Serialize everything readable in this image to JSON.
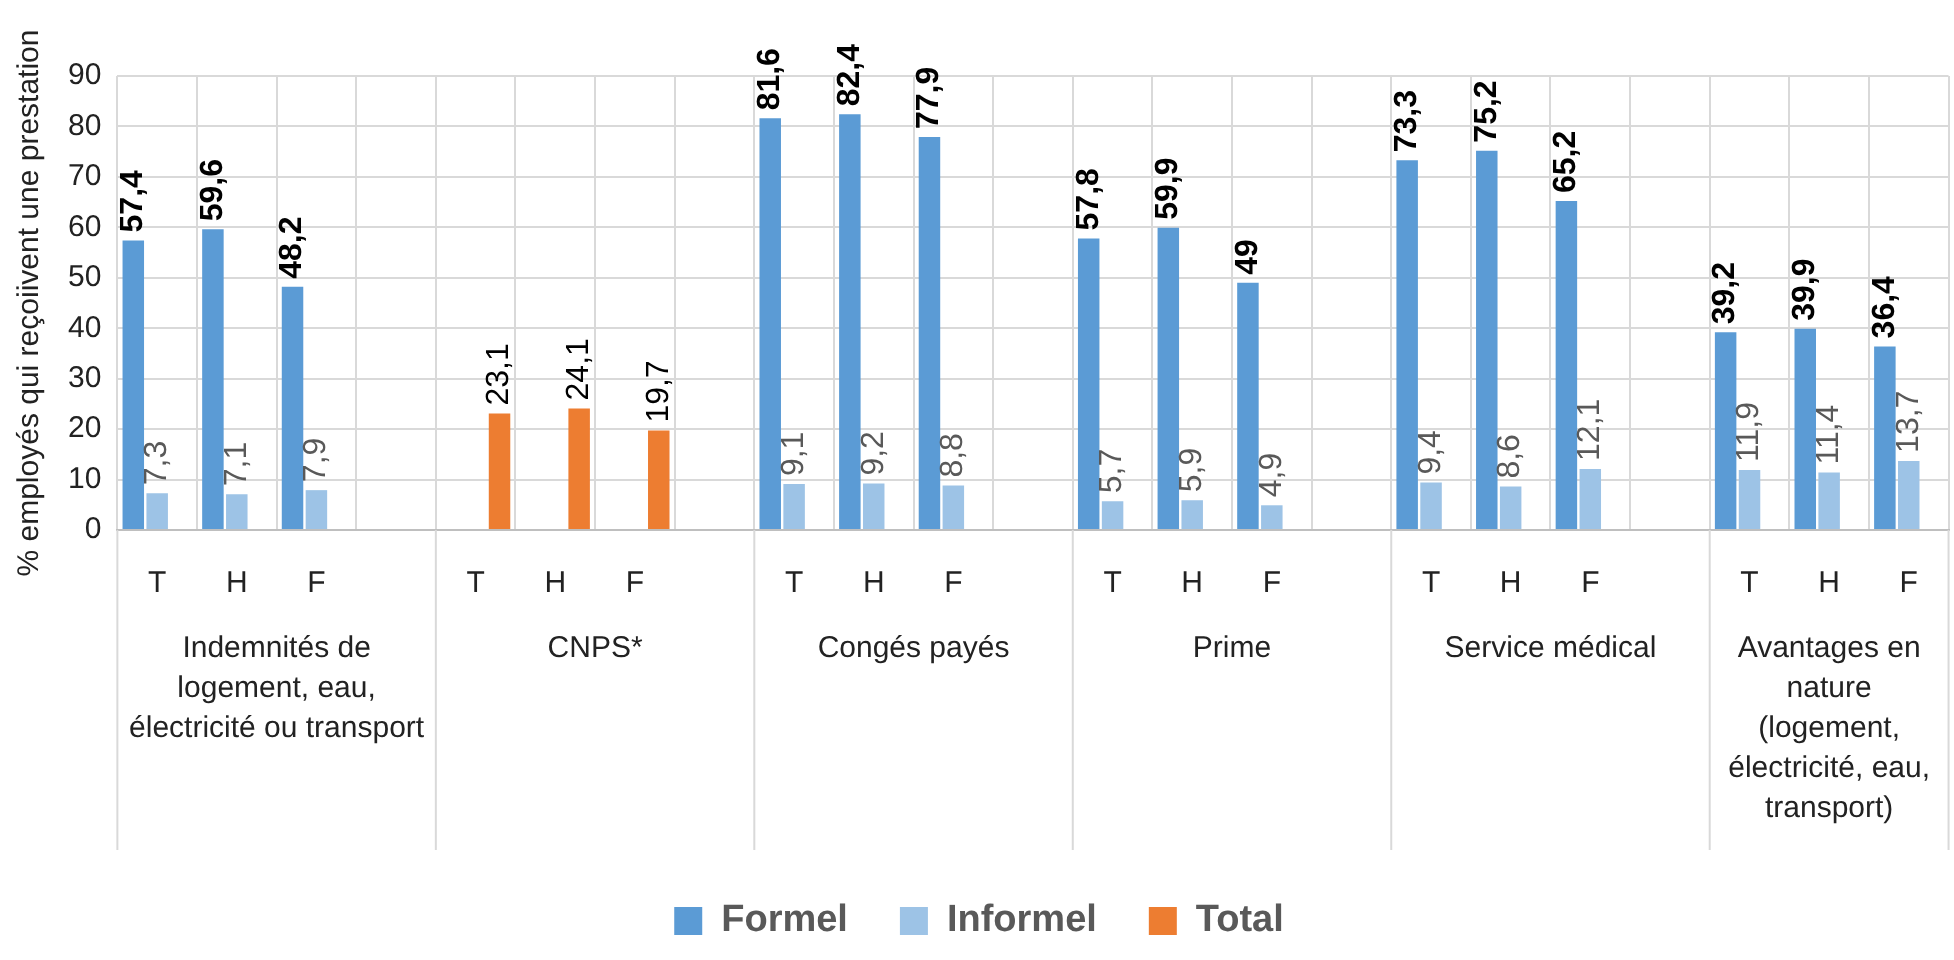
{
  "chart_data": {
    "type": "bar",
    "ylabel": "% employés qui reçoiivent une prestation",
    "categories": [
      "T",
      "H",
      "F",
      null,
      "T",
      "H",
      "F",
      null,
      "T",
      "H",
      "F",
      null,
      "T",
      "H",
      "F",
      null,
      "T",
      "H",
      "F",
      null,
      "T",
      "H",
      "F"
    ],
    "series": [
      {
        "name": "Formel",
        "color": "#5b9bd5",
        "values": [
          57.4,
          59.6,
          48.2,
          null,
          null,
          null,
          null,
          null,
          81.6,
          82.4,
          77.9,
          null,
          57.8,
          59.9,
          49,
          null,
          73.3,
          75.2,
          65.2,
          null,
          39.2,
          39.9,
          36.4
        ],
        "value_labels": [
          "57,4",
          "59,6",
          "48,2",
          null,
          null,
          null,
          null,
          null,
          "81,6",
          "82,4",
          "77,9",
          null,
          "57,8",
          "59,9",
          "49",
          null,
          "73,3",
          "75,2",
          "65,2",
          null,
          "39,2",
          "39,9",
          "36,4"
        ]
      },
      {
        "name": "Informel",
        "color": "#9dc3e6",
        "values": [
          7.3,
          7.1,
          7.9,
          null,
          null,
          null,
          null,
          null,
          9.1,
          9.2,
          8.8,
          null,
          5.7,
          5.9,
          4.9,
          null,
          9.4,
          8.6,
          12.1,
          null,
          11.9,
          11.4,
          13.7
        ],
        "value_labels": [
          "7,3",
          "7,1",
          "7,9",
          null,
          null,
          null,
          null,
          null,
          "9,1",
          "9,2",
          "8,8",
          null,
          "5,7",
          "5,9",
          "4,9",
          null,
          "9,4",
          "8,6",
          "12,1",
          null,
          "11,9",
          "11,4",
          "13,7"
        ]
      },
      {
        "name": "Total",
        "color": "#ed7d31",
        "values": [
          null,
          null,
          null,
          null,
          23.1,
          24.1,
          19.7,
          null,
          null,
          null,
          null,
          null,
          null,
          null,
          null,
          null,
          null,
          null,
          null,
          null,
          null,
          null,
          null
        ],
        "value_labels": [
          null,
          null,
          null,
          null,
          "23,1",
          "24,1",
          "19,7",
          null,
          null,
          null,
          null,
          null,
          null,
          null,
          null,
          null,
          null,
          null,
          null,
          null,
          null,
          null,
          null
        ]
      }
    ],
    "annotations": [
      "Indemnités de logement, eau, électricité ou transport",
      "CNPS*",
      "Congés payés",
      "Prime",
      "Service médical",
      "Avantages en nature (logement, électricité, eau, transport)"
    ],
    "ylim": [
      0,
      90
    ],
    "yticks": [
      0,
      10,
      20,
      30,
      40,
      50,
      60,
      70,
      80,
      90
    ],
    "grid": true,
    "legend": "bottom"
  }
}
